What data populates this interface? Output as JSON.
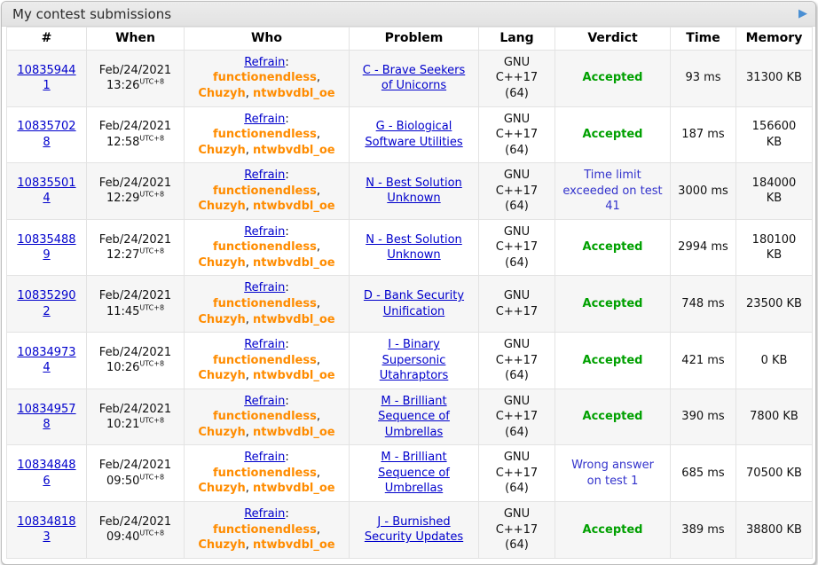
{
  "window": {
    "title": "My contest submissions"
  },
  "icons": {
    "expand_arrow": "▶"
  },
  "colors": {
    "link_blue": "#0000cc",
    "member_orange": "#ff8c00",
    "accepted_green": "#00a000",
    "rejected_blue": "#3333cc",
    "arrow_blue": "#4a8fd3",
    "alt_row_bg": "#f6f6f6"
  },
  "table": {
    "columns": [
      "#",
      "When",
      "Who",
      "Problem",
      "Lang",
      "Verdict",
      "Time",
      "Memory"
    ],
    "team_colon": ": ",
    "member_separator": ", ",
    "rows": [
      {
        "id": "108359441",
        "when_date": "Feb/24/2021",
        "when_time": "13:26",
        "when_tz": "UTC+8",
        "team": "Refrain",
        "members": [
          "functionendless",
          "Chuzyh",
          "ntwbvdbl_oe"
        ],
        "problem": "C - Brave Seekers of Unicorns",
        "lang": "GNU C++17 (64)",
        "verdict": "Accepted",
        "verdict_status": "accepted",
        "time": "93 ms",
        "memory": "31300 KB"
      },
      {
        "id": "108357028",
        "when_date": "Feb/24/2021",
        "when_time": "12:58",
        "when_tz": "UTC+8",
        "team": "Refrain",
        "members": [
          "functionendless",
          "Chuzyh",
          "ntwbvdbl_oe"
        ],
        "problem": "G - Biological Software Utilities",
        "lang": "GNU C++17 (64)",
        "verdict": "Accepted",
        "verdict_status": "accepted",
        "time": "187 ms",
        "memory": "156600 KB"
      },
      {
        "id": "108355014",
        "when_date": "Feb/24/2021",
        "when_time": "12:29",
        "when_tz": "UTC+8",
        "team": "Refrain",
        "members": [
          "functionendless",
          "Chuzyh",
          "ntwbvdbl_oe"
        ],
        "problem": "N - Best Solution Unknown",
        "lang": "GNU C++17 (64)",
        "verdict": "Time limit exceeded on test 41",
        "verdict_status": "rejected",
        "time": "3000 ms",
        "memory": "184000 KB"
      },
      {
        "id": "108354889",
        "when_date": "Feb/24/2021",
        "when_time": "12:27",
        "when_tz": "UTC+8",
        "team": "Refrain",
        "members": [
          "functionendless",
          "Chuzyh",
          "ntwbvdbl_oe"
        ],
        "problem": "N - Best Solution Unknown",
        "lang": "GNU C++17 (64)",
        "verdict": "Accepted",
        "verdict_status": "accepted",
        "time": "2994 ms",
        "memory": "180100 KB"
      },
      {
        "id": "108352902",
        "when_date": "Feb/24/2021",
        "when_time": "11:45",
        "when_tz": "UTC+8",
        "team": "Refrain",
        "members": [
          "functionendless",
          "Chuzyh",
          "ntwbvdbl_oe"
        ],
        "problem": "D - Bank Security Unification",
        "lang": "GNU C++17",
        "verdict": "Accepted",
        "verdict_status": "accepted",
        "time": "748 ms",
        "memory": "23500 KB"
      },
      {
        "id": "108349734",
        "when_date": "Feb/24/2021",
        "when_time": "10:26",
        "when_tz": "UTC+8",
        "team": "Refrain",
        "members": [
          "functionendless",
          "Chuzyh",
          "ntwbvdbl_oe"
        ],
        "problem": "I - Binary Supersonic Utahraptors",
        "lang": "GNU C++17 (64)",
        "verdict": "Accepted",
        "verdict_status": "accepted",
        "time": "421 ms",
        "memory": "0 KB"
      },
      {
        "id": "108349578",
        "when_date": "Feb/24/2021",
        "when_time": "10:21",
        "when_tz": "UTC+8",
        "team": "Refrain",
        "members": [
          "functionendless",
          "Chuzyh",
          "ntwbvdbl_oe"
        ],
        "problem": "M - Brilliant Sequence of Umbrellas",
        "lang": "GNU C++17 (64)",
        "verdict": "Accepted",
        "verdict_status": "accepted",
        "time": "390 ms",
        "memory": "7800 KB"
      },
      {
        "id": "108348486",
        "when_date": "Feb/24/2021",
        "when_time": "09:50",
        "when_tz": "UTC+8",
        "team": "Refrain",
        "members": [
          "functionendless",
          "Chuzyh",
          "ntwbvdbl_oe"
        ],
        "problem": "M - Brilliant Sequence of Umbrellas",
        "lang": "GNU C++17 (64)",
        "verdict": "Wrong answer on test 1",
        "verdict_status": "rejected",
        "time": "685 ms",
        "memory": "70500 KB"
      },
      {
        "id": "108348183",
        "when_date": "Feb/24/2021",
        "when_time": "09:40",
        "when_tz": "UTC+8",
        "team": "Refrain",
        "members": [
          "functionendless",
          "Chuzyh",
          "ntwbvdbl_oe"
        ],
        "problem": "J - Burnished Security Updates",
        "lang": "GNU C++17 (64)",
        "verdict": "Accepted",
        "verdict_status": "accepted",
        "time": "389 ms",
        "memory": "38800 KB"
      }
    ]
  }
}
